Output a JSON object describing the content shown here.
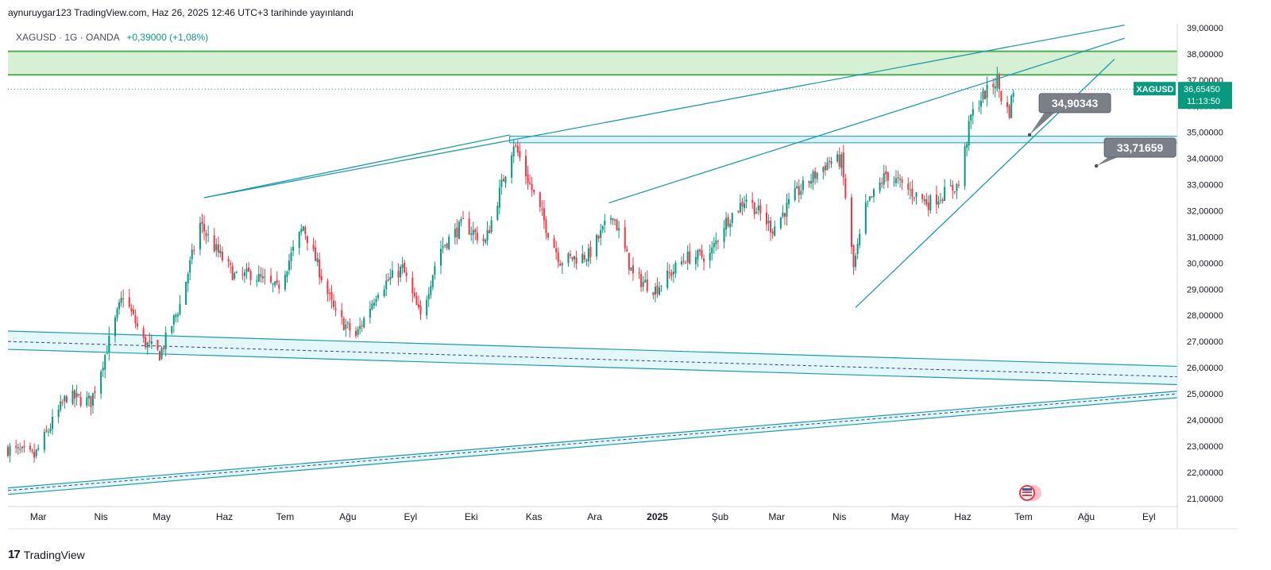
{
  "header": {
    "publisher_line": "aynuruygar123 TradingView.com, Haz 26, 2025 12:46 UTC+3 tarihinde yayınlandı"
  },
  "symbol_line": {
    "info": "XAGUSD · 1G · OANDA",
    "change": "+0,39000 (+1,08%)"
  },
  "price_tag": {
    "symbol": "XAGUSD",
    "price": "36,65450",
    "countdown": "11:13:50",
    "color": "#089981"
  },
  "callouts": [
    {
      "label": "34,90343",
      "value": 34.90343
    },
    {
      "label": "33,71659",
      "value": 33.71659
    }
  ],
  "footer": {
    "logo_mark": "17",
    "logo_text": "TradingView"
  },
  "colors": {
    "up": "#089981",
    "down": "#f23645",
    "trendline": "#1e9ab0",
    "resistance_zone_fill": "#d6f0d4",
    "resistance_zone_line": "#4caf50",
    "channel_fill": "#d8f3fa",
    "callout_bg": "#7b7f87"
  },
  "chart_data": {
    "type": "candlestick",
    "instrument": "XAGUSD",
    "interval": "1G",
    "source": "OANDA",
    "y_axis": {
      "ticks": [
        "21,00000",
        "22,00000",
        "23,00000",
        "24,00000",
        "25,00000",
        "26,00000",
        "27,00000",
        "28,00000",
        "29,00000",
        "30,00000",
        "31,00000",
        "32,00000",
        "33,00000",
        "34,00000",
        "35,00000",
        "36,00000",
        "37,00000",
        "38,00000",
        "39,00000"
      ],
      "tick_values": [
        21,
        22,
        23,
        24,
        25,
        26,
        27,
        28,
        29,
        30,
        31,
        32,
        33,
        34,
        35,
        36,
        37,
        38,
        39
      ],
      "ylim": [
        20.75,
        39.15
      ]
    },
    "x_axis": {
      "labels": [
        "Mar",
        "Nis",
        "May",
        "Haz",
        "Tem",
        "Ağu",
        "Eyl",
        "Eki",
        "Kas",
        "Ara",
        "2025",
        "Şub",
        "Mar",
        "Nis",
        "May",
        "Haz",
        "Tem",
        "Ağu",
        "Eyl"
      ],
      "dates": [
        "2024-03-01",
        "2024-04-01",
        "2024-05-01",
        "2024-06-01",
        "2024-07-01",
        "2024-08-01",
        "2024-09-01",
        "2024-10-01",
        "2024-11-01",
        "2024-12-01",
        "2025-01-01",
        "2025-02-01",
        "2025-03-01",
        "2025-04-01",
        "2025-05-01",
        "2025-06-01",
        "2025-07-01",
        "2025-08-01",
        "2025-09-01"
      ],
      "bold": [
        false,
        false,
        false,
        false,
        false,
        false,
        false,
        false,
        false,
        false,
        true,
        false,
        false,
        false,
        false,
        false,
        false,
        false,
        false
      ],
      "range": [
        "2024-02-15",
        "2025-09-15"
      ]
    },
    "price_path": [
      [
        "2024-02-15",
        22.9
      ],
      [
        "2024-02-28",
        22.6
      ],
      [
        "2024-03-15",
        24.9
      ],
      [
        "2024-03-27",
        24.7
      ],
      [
        "2024-04-12",
        28.8
      ],
      [
        "2024-04-22",
        27.0
      ],
      [
        "2024-04-30",
        26.5
      ],
      [
        "2024-05-10",
        28.4
      ],
      [
        "2024-05-20",
        31.5
      ],
      [
        "2024-05-27",
        30.6
      ],
      [
        "2024-06-07",
        29.4
      ],
      [
        "2024-06-14",
        29.6
      ],
      [
        "2024-06-27",
        29.0
      ],
      [
        "2024-07-10",
        31.4
      ],
      [
        "2024-07-26",
        28.0
      ],
      [
        "2024-08-05",
        27.2
      ],
      [
        "2024-08-16",
        29.0
      ],
      [
        "2024-08-28",
        29.8
      ],
      [
        "2024-09-06",
        27.9
      ],
      [
        "2024-09-15",
        30.5
      ],
      [
        "2024-09-27",
        31.5
      ],
      [
        "2024-10-08",
        30.8
      ],
      [
        "2024-10-22",
        34.6
      ],
      [
        "2024-10-30",
        33.0
      ],
      [
        "2024-11-08",
        31.2
      ],
      [
        "2024-11-14",
        30.1
      ],
      [
        "2024-11-28",
        30.3
      ],
      [
        "2024-12-10",
        31.9
      ],
      [
        "2024-12-20",
        29.5
      ],
      [
        "2024-12-31",
        29.0
      ],
      [
        "2025-01-15",
        30.2
      ],
      [
        "2025-01-27",
        30.3
      ],
      [
        "2025-02-03",
        31.5
      ],
      [
        "2025-02-14",
        32.5
      ],
      [
        "2025-02-27",
        31.3
      ],
      [
        "2025-03-10",
        32.6
      ],
      [
        "2025-03-27",
        33.9
      ],
      [
        "2025-04-02",
        33.9
      ],
      [
        "2025-04-08",
        29.8
      ],
      [
        "2025-04-14",
        32.1
      ],
      [
        "2025-04-24",
        33.4
      ],
      [
        "2025-05-05",
        32.8
      ],
      [
        "2025-05-15",
        32.3
      ],
      [
        "2025-05-30",
        33.0
      ],
      [
        "2025-06-05",
        35.6
      ],
      [
        "2025-06-10",
        36.3
      ],
      [
        "2025-06-18",
        37.0
      ],
      [
        "2025-06-21",
        36.0
      ],
      [
        "2025-06-24",
        35.8
      ],
      [
        "2025-06-26",
        36.6545
      ]
    ],
    "overlays": {
      "resistance_zone": [
        37.2,
        38.1
      ],
      "horizontal_band": [
        34.6,
        34.85
      ],
      "trendlines": [
        {
          "from": [
            "2024-05-22",
            32.5
          ],
          "to": [
            "2025-08-20",
            39.1
          ]
        },
        {
          "from": [
            "2024-10-20",
            34.9
          ],
          "to": [
            "2024-05-22",
            32.5
          ]
        },
        {
          "from": [
            "2024-12-08",
            32.3
          ],
          "to": [
            "2025-08-20",
            38.6
          ]
        },
        {
          "from": [
            "2025-04-09",
            28.3
          ],
          "to": [
            "2025-08-15",
            37.8
          ]
        }
      ],
      "channels": [
        {
          "upper": [
            [
              "2024-02-15",
              27.4
            ],
            [
              "2025-09-15",
              26.05
            ]
          ],
          "mid": [
            [
              "2024-02-15",
              27.0
            ],
            [
              "2025-09-15",
              25.65
            ]
          ],
          "lower": [
            [
              "2024-02-15",
              26.7
            ],
            [
              "2025-09-15",
              25.35
            ]
          ]
        },
        {
          "upper": [
            [
              "2024-02-15",
              21.4
            ],
            [
              "2025-09-15",
              25.1
            ]
          ],
          "mid": [
            [
              "2024-02-15",
              21.3
            ],
            [
              "2025-09-15",
              25.0
            ]
          ],
          "lower": [
            [
              "2024-02-15",
              21.15
            ],
            [
              "2025-09-15",
              24.85
            ]
          ]
        }
      ],
      "dotted_price_line": 36.6545
    }
  }
}
